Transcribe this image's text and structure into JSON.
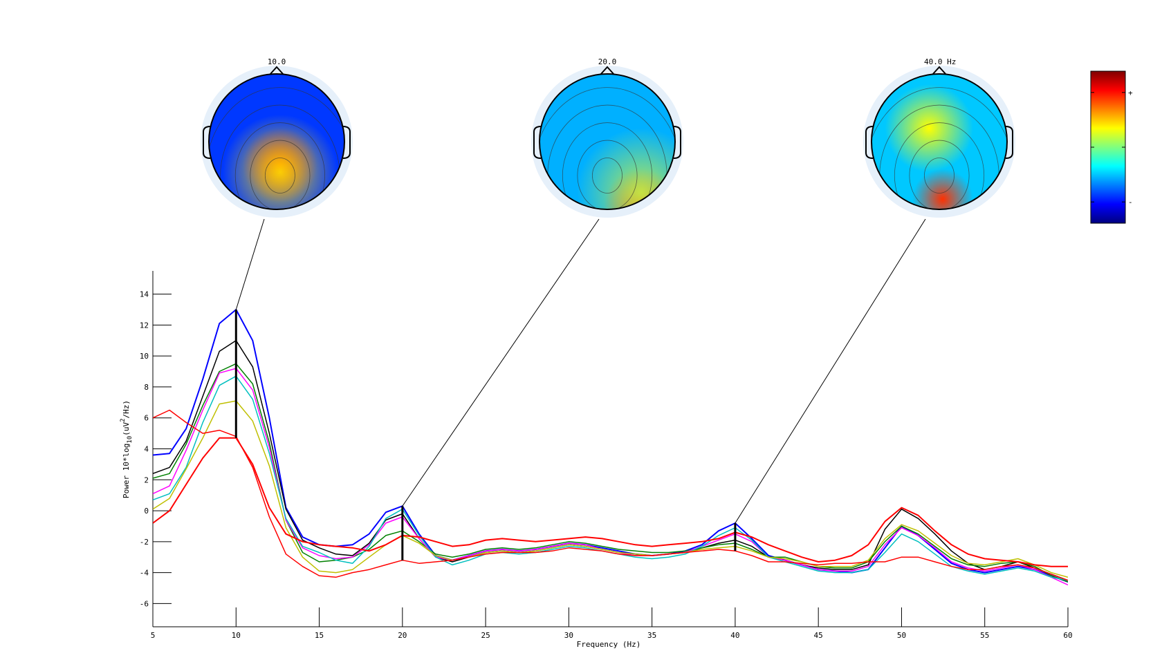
{
  "chart_data": {
    "type": "line",
    "xlabel": "Frequency (Hz)",
    "ylabel": "Power 10*log10(uV^2/Hz)",
    "ylabel_parts": {
      "pre": "Power 10*log",
      "sub": "10",
      "mid": "(uV",
      "sup": "2",
      "post": "/Hz)"
    },
    "xlim": [
      5,
      60
    ],
    "ylim": [
      -7.5,
      15.5
    ],
    "xticks": [
      5,
      10,
      15,
      20,
      25,
      30,
      35,
      40,
      45,
      50,
      55,
      60
    ],
    "yticks": [
      -6,
      -4,
      -2,
      0,
      2,
      4,
      6,
      8,
      10,
      12,
      14
    ],
    "grid": false,
    "legend": "none",
    "x": [
      5,
      6,
      7,
      8,
      9,
      10,
      11,
      12,
      13,
      14,
      15,
      16,
      17,
      18,
      19,
      20,
      21,
      22,
      23,
      24,
      25,
      26,
      27,
      28,
      29,
      30,
      31,
      32,
      33,
      34,
      35,
      36,
      37,
      38,
      39,
      40,
      41,
      42,
      43,
      44,
      45,
      46,
      47,
      48,
      49,
      50,
      51,
      52,
      53,
      54,
      55,
      56,
      57,
      58,
      59,
      60
    ],
    "series": [
      {
        "color": "#0000ff",
        "width": 2,
        "values": [
          3.6,
          3.7,
          5.3,
          8.5,
          12.1,
          13.0,
          11.0,
          6.0,
          0.2,
          -1.7,
          -2.2,
          -2.3,
          -2.2,
          -1.5,
          -0.1,
          0.3,
          -1.5,
          -2.9,
          -3.2,
          -2.9,
          -2.6,
          -2.5,
          -2.6,
          -2.5,
          -2.3,
          -2.1,
          -2.2,
          -2.4,
          -2.6,
          -2.8,
          -2.9,
          -2.8,
          -2.6,
          -2.2,
          -1.3,
          -0.8,
          -1.8,
          -2.9,
          -3.2,
          -3.5,
          -3.8,
          -3.9,
          -4.0,
          -3.8,
          -2.4,
          -1.0,
          -1.6,
          -2.5,
          -3.4,
          -3.8,
          -4.0,
          -3.8,
          -3.6,
          -3.8,
          -4.2,
          -4.6
        ]
      },
      {
        "color": "#000000",
        "width": 1.5,
        "values": [
          2.4,
          2.8,
          4.5,
          7.4,
          10.3,
          11.0,
          9.3,
          5.0,
          0.1,
          -1.9,
          -2.4,
          -2.8,
          -2.9,
          -2.1,
          -0.6,
          -0.2,
          -1.8,
          -3.0,
          -3.3,
          -3.0,
          -2.7,
          -2.6,
          -2.7,
          -2.6,
          -2.4,
          -2.2,
          -2.3,
          -2.5,
          -2.7,
          -2.8,
          -2.9,
          -2.8,
          -2.7,
          -2.4,
          -2.1,
          -1.9,
          -2.3,
          -3.0,
          -3.2,
          -3.5,
          -3.7,
          -3.8,
          -3.8,
          -3.5,
          -1.2,
          0.1,
          -0.5,
          -1.5,
          -2.6,
          -3.4,
          -3.8,
          -3.6,
          -3.3,
          -3.7,
          -4.1,
          -4.5
        ]
      },
      {
        "color": "#008000",
        "width": 1.5,
        "values": [
          2.1,
          2.4,
          4.3,
          6.8,
          9.0,
          9.5,
          8.2,
          4.4,
          -0.6,
          -2.7,
          -3.3,
          -3.2,
          -3.0,
          -2.5,
          -1.6,
          -1.3,
          -2.0,
          -2.8,
          -3.0,
          -2.8,
          -2.5,
          -2.4,
          -2.5,
          -2.4,
          -2.2,
          -2.0,
          -2.1,
          -2.3,
          -2.5,
          -2.6,
          -2.7,
          -2.7,
          -2.6,
          -2.4,
          -2.2,
          -2.1,
          -2.5,
          -3.0,
          -3.0,
          -3.3,
          -3.6,
          -3.7,
          -3.7,
          -3.3,
          -2.0,
          -1.0,
          -1.5,
          -2.3,
          -3.1,
          -3.5,
          -3.6,
          -3.4,
          -3.3,
          -3.6,
          -4.2,
          -4.6
        ]
      },
      {
        "color": "#ff00ff",
        "width": 1.5,
        "values": [
          1.1,
          1.6,
          3.9,
          6.5,
          8.9,
          9.2,
          7.8,
          4.1,
          -0.6,
          -2.4,
          -2.9,
          -3.1,
          -3.0,
          -2.2,
          -0.8,
          -0.4,
          -1.8,
          -3.0,
          -3.2,
          -2.9,
          -2.6,
          -2.5,
          -2.6,
          -2.5,
          -2.3,
          -2.1,
          -2.2,
          -2.5,
          -2.7,
          -2.9,
          -2.9,
          -2.8,
          -2.7,
          -2.3,
          -1.9,
          -1.5,
          -2.0,
          -3.0,
          -3.2,
          -3.5,
          -3.8,
          -3.9,
          -3.9,
          -3.6,
          -2.2,
          -1.1,
          -1.6,
          -2.4,
          -3.3,
          -3.7,
          -3.9,
          -3.7,
          -3.5,
          -3.8,
          -4.3,
          -4.8
        ]
      },
      {
        "color": "#00bfbf",
        "width": 1.5,
        "values": [
          0.7,
          1.1,
          2.8,
          5.7,
          8.1,
          8.7,
          7.2,
          3.7,
          -0.5,
          -2.3,
          -2.7,
          -3.2,
          -3.4,
          -2.3,
          -0.5,
          0.1,
          -1.6,
          -3.0,
          -3.5,
          -3.2,
          -2.8,
          -2.7,
          -2.8,
          -2.7,
          -2.5,
          -2.3,
          -2.4,
          -2.6,
          -2.8,
          -3.0,
          -3.1,
          -3.0,
          -2.8,
          -2.3,
          -1.6,
          -1.1,
          -1.9,
          -3.0,
          -3.3,
          -3.6,
          -3.9,
          -4.0,
          -4.0,
          -3.8,
          -2.7,
          -1.5,
          -2.0,
          -2.8,
          -3.6,
          -3.9,
          -4.1,
          -3.9,
          -3.7,
          -3.9,
          -4.3,
          -4.5
        ]
      },
      {
        "color": "#bfbf00",
        "width": 1.5,
        "values": [
          0.1,
          0.8,
          2.7,
          4.7,
          6.9,
          7.1,
          5.8,
          2.9,
          -1.1,
          -3.0,
          -3.9,
          -4.0,
          -3.8,
          -3.0,
          -2.2,
          -1.6,
          -2.1,
          -2.9,
          -3.2,
          -3.0,
          -2.7,
          -2.6,
          -2.7,
          -2.6,
          -2.4,
          -2.2,
          -2.3,
          -2.5,
          -2.7,
          -2.8,
          -2.9,
          -2.8,
          -2.7,
          -2.5,
          -2.4,
          -2.3,
          -2.6,
          -3.0,
          -3.1,
          -3.3,
          -3.6,
          -3.6,
          -3.6,
          -3.2,
          -1.8,
          -0.9,
          -1.3,
          -2.1,
          -2.9,
          -3.4,
          -3.5,
          -3.3,
          -3.1,
          -3.5,
          -4.0,
          -4.3
        ]
      },
      {
        "color": "#ff0000",
        "width": 1.5,
        "values": [
          6.0,
          6.5,
          5.7,
          5.0,
          5.2,
          4.8,
          2.8,
          -0.4,
          -2.8,
          -3.6,
          -4.2,
          -4.3,
          -4.0,
          -3.8,
          -3.5,
          -3.2,
          -3.4,
          -3.3,
          -3.2,
          -3.0,
          -2.8,
          -2.7,
          -2.7,
          -2.7,
          -2.6,
          -2.4,
          -2.5,
          -2.6,
          -2.8,
          -2.9,
          -2.9,
          -2.8,
          -2.7,
          -2.6,
          -2.5,
          -2.6,
          -2.9,
          -3.3,
          -3.3,
          -3.4,
          -3.5,
          -3.4,
          -3.4,
          -3.3,
          -3.3,
          -3.0,
          -3.0,
          -3.3,
          -3.6,
          -3.8,
          -3.8,
          -3.6,
          -3.5,
          -3.7,
          -4.1,
          -4.5
        ]
      },
      {
        "color": "#ff0000",
        "width": 2,
        "values": [
          -0.8,
          0.0,
          1.7,
          3.4,
          4.7,
          4.7,
          3.0,
          0.2,
          -1.5,
          -2.0,
          -2.2,
          -2.3,
          -2.4,
          -2.6,
          -2.2,
          -1.6,
          -1.7,
          -2.0,
          -2.3,
          -2.2,
          -1.9,
          -1.8,
          -1.9,
          -2.0,
          -1.9,
          -1.8,
          -1.7,
          -1.8,
          -2.0,
          -2.2,
          -2.3,
          -2.2,
          -2.1,
          -2.0,
          -1.8,
          -1.4,
          -1.7,
          -2.2,
          -2.6,
          -3.0,
          -3.3,
          -3.2,
          -2.9,
          -2.2,
          -0.7,
          0.2,
          -0.3,
          -1.3,
          -2.2,
          -2.8,
          -3.1,
          -3.2,
          -3.3,
          -3.5,
          -3.6,
          -3.6
        ]
      }
    ],
    "markers": [
      {
        "freq": 10,
        "label": "10.0",
        "bar": [
          4.7,
          13.0
        ],
        "anchor": 13.0
      },
      {
        "freq": 20,
        "label": "20.0",
        "bar": [
          -3.2,
          0.3
        ],
        "anchor": 0.3
      },
      {
        "freq": 40,
        "label": "40.0 Hz",
        "bar": [
          -2.6,
          -0.8
        ],
        "anchor": -0.8
      }
    ],
    "colorbar": {
      "ticks": [
        "+",
        "",
        "-"
      ],
      "colormap": "jet"
    }
  },
  "colors": {
    "jet_stops": [
      "#00007f",
      "#0000ff",
      "#007fff",
      "#00ffff",
      "#7fff7f",
      "#ffff00",
      "#ff7f00",
      "#ff0000",
      "#7f0000"
    ]
  }
}
